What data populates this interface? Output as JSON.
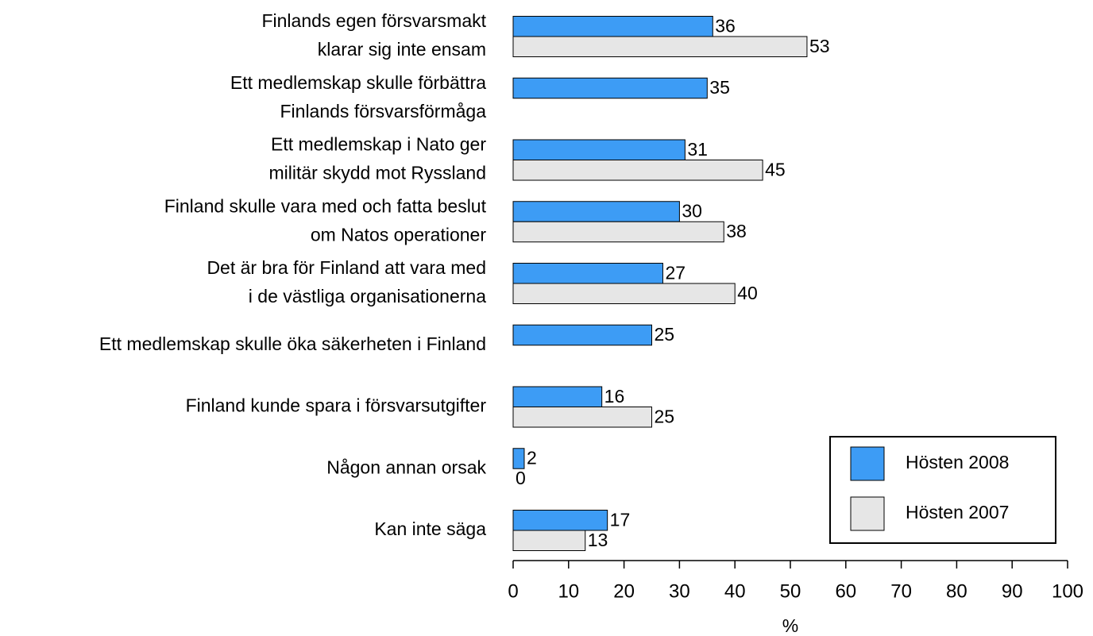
{
  "chart_data": {
    "type": "bar",
    "orientation": "horizontal",
    "categories": [
      [
        "Finlands egen försvarsmakt",
        "klarar sig inte ensam"
      ],
      [
        "Ett medlemskap skulle förbättra",
        "Finlands försvarsförmåga"
      ],
      [
        "Ett medlemskap i Nato ger",
        "militär skydd mot Ryssland"
      ],
      [
        "Finland skulle vara med och fatta beslut",
        "om Natos operationer"
      ],
      [
        "Det är bra för Finland att vara med",
        "i de västliga organisationerna"
      ],
      [
        "Ett medlemskap skulle öka säkerheten i Finland"
      ],
      [
        "Finland kunde spara i försvarsutgifter"
      ],
      [
        "Någon annan orsak"
      ],
      [
        "Kan inte säga"
      ]
    ],
    "series": [
      {
        "name": "Hösten 2008",
        "color": "#3d9cf5",
        "values": [
          36,
          35,
          31,
          30,
          27,
          25,
          16,
          2,
          17
        ]
      },
      {
        "name": "Hösten 2007",
        "color": "#e6e6e6",
        "values": [
          53,
          null,
          45,
          38,
          40,
          null,
          25,
          0,
          13
        ]
      }
    ],
    "xlim": [
      0,
      100
    ],
    "xticks": [
      0,
      10,
      20,
      30,
      40,
      50,
      60,
      70,
      80,
      90,
      100
    ],
    "xlabel": "%",
    "legend": "lower right"
  }
}
